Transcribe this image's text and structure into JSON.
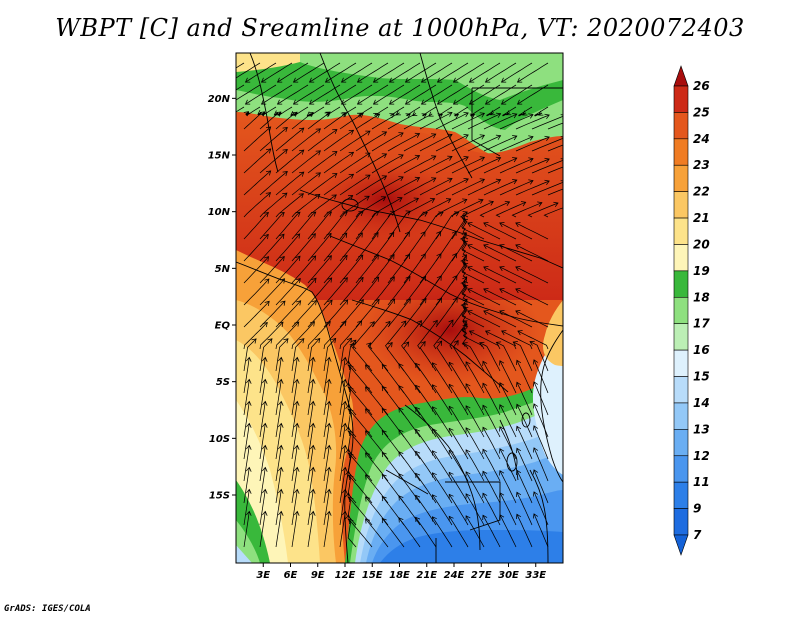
{
  "title": "WBPT [C] and Sreamline at 1000hPa, VT: 2020072403",
  "credit": "GrADS: IGES/COLA",
  "map": {
    "lat_range": [
      -21,
      24
    ],
    "lon_range": [
      0,
      36
    ],
    "lat_ticks": [
      {
        "value": 20,
        "label": "20N"
      },
      {
        "value": 15,
        "label": "15N"
      },
      {
        "value": 10,
        "label": "10N"
      },
      {
        "value": 5,
        "label": "5N"
      },
      {
        "value": 0,
        "label": "EQ"
      },
      {
        "value": -5,
        "label": "5S"
      },
      {
        "value": -10,
        "label": "10S"
      },
      {
        "value": -15,
        "label": "15S"
      }
    ],
    "lon_ticks": [
      {
        "value": 3,
        "label": "3E"
      },
      {
        "value": 6,
        "label": "6E"
      },
      {
        "value": 9,
        "label": "9E"
      },
      {
        "value": 12,
        "label": "12E"
      },
      {
        "value": 15,
        "label": "15E"
      },
      {
        "value": 18,
        "label": "18E"
      },
      {
        "value": 21,
        "label": "21E"
      },
      {
        "value": 24,
        "label": "24E"
      },
      {
        "value": 27,
        "label": "27E"
      },
      {
        "value": 30,
        "label": "30E"
      },
      {
        "value": 33,
        "label": "33E"
      }
    ]
  },
  "colorbar": {
    "levels": [
      {
        "label": "7",
        "color": "#1e6ce0"
      },
      {
        "label": "9",
        "color": "#2d7fe8"
      },
      {
        "label": "11",
        "color": "#4a96ef"
      },
      {
        "label": "12",
        "color": "#6aaef3"
      },
      {
        "label": "13",
        "color": "#93c8f7"
      },
      {
        "label": "14",
        "color": "#b8dcfa"
      },
      {
        "label": "15",
        "color": "#def1fd"
      },
      {
        "label": "16",
        "color": "#bcefb5"
      },
      {
        "label": "17",
        "color": "#8ee07f"
      },
      {
        "label": "18",
        "color": "#39b83b"
      },
      {
        "label": "19",
        "color": "#fef5b8"
      },
      {
        "label": "20",
        "color": "#fde38a"
      },
      {
        "label": "21",
        "color": "#fbc763"
      },
      {
        "label": "22",
        "color": "#f7a139"
      },
      {
        "label": "23",
        "color": "#f07c23"
      },
      {
        "label": "24",
        "color": "#e4571d"
      },
      {
        "label": "25",
        "color": "#cd2a17"
      },
      {
        "label": "26",
        "color": "#a80d0d"
      }
    ],
    "under_color": "#1462d8"
  }
}
